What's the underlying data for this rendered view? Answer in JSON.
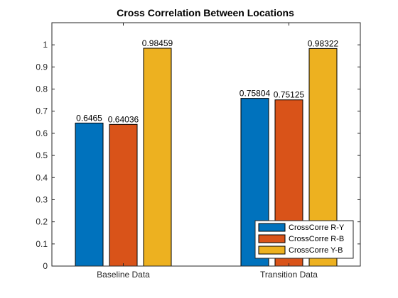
{
  "chart_data": {
    "type": "bar",
    "title": "Cross Correlation Between Locations",
    "categories": [
      "Baseline Data",
      "Transition Data"
    ],
    "series": [
      {
        "name": "CrossCorre R-Y",
        "values": [
          0.6465,
          0.75804
        ],
        "labels": [
          "0.6465",
          "0.75804"
        ],
        "color": "#0072BD"
      },
      {
        "name": "CrossCorre R-B",
        "values": [
          0.64036,
          0.75125
        ],
        "labels": [
          "0.64036",
          "0.75125"
        ],
        "color": "#D95319"
      },
      {
        "name": "CrossCorre Y-B",
        "values": [
          0.98459,
          0.98322
        ],
        "labels": [
          "0.98459",
          "0.98322"
        ],
        "color": "#EDB120"
      }
    ],
    "ylim": [
      0,
      1.1
    ],
    "yticks": [
      0,
      0.1,
      0.2,
      0.3,
      0.4,
      0.5,
      0.6,
      0.7,
      0.8,
      0.9,
      1
    ],
    "ytick_labels": [
      "0",
      "0.1",
      "0.2",
      "0.3",
      "0.4",
      "0.5",
      "0.6",
      "0.7",
      "0.8",
      "0.9",
      "1"
    ],
    "grid": false,
    "legend_position": "bottom-right"
  }
}
